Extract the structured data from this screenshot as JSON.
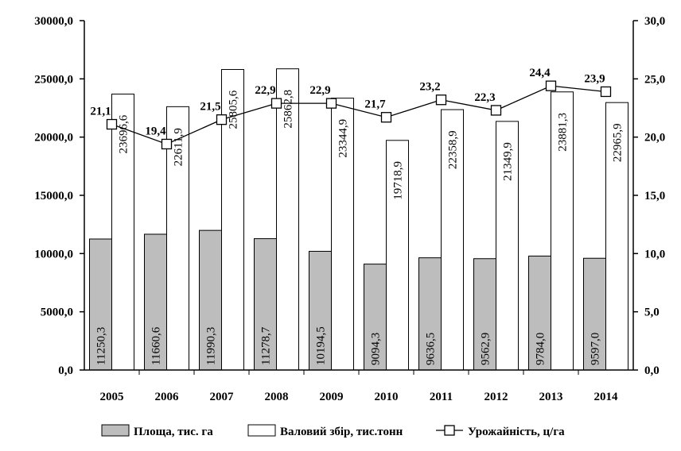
{
  "chart_data": {
    "type": "bar",
    "categories": [
      "2005",
      "2006",
      "2007",
      "2008",
      "2009",
      "2010",
      "2011",
      "2012",
      "2013",
      "2014"
    ],
    "series": [
      {
        "name": "Площа, тис. га",
        "kind": "bar",
        "axis": "left",
        "color": "#bdbdbd",
        "values": [
          11250.3,
          11660.6,
          11990.3,
          11278.7,
          10194.5,
          9094.3,
          9636.5,
          9562.9,
          9784.0,
          9597.0
        ],
        "labels": [
          "11250,3",
          "11660,6",
          "11990,3",
          "11278,7",
          "10194,5",
          "9094,3",
          "9636,5",
          "9562,9",
          "9784,0",
          "9597,0"
        ]
      },
      {
        "name": "Валовий збір, тис.тонн",
        "kind": "bar",
        "axis": "left",
        "color": "#ffffff",
        "values": [
          23696.6,
          22611.9,
          25805.6,
          25862.8,
          23344.9,
          19718.9,
          22358.9,
          21349.9,
          23881.3,
          22965.9
        ],
        "labels": [
          "23696,6",
          "22611,9",
          "25805,6",
          "25862,8",
          "23344,9",
          "19718,9",
          "22358,9",
          "21349,9",
          "23881,3",
          "22965,9"
        ]
      },
      {
        "name": "Урожайність, ц/га",
        "kind": "line",
        "axis": "right",
        "color": "#000000",
        "values": [
          21.1,
          19.4,
          21.5,
          22.9,
          22.9,
          21.7,
          23.2,
          22.3,
          24.4,
          23.9
        ],
        "labels": [
          "21,1",
          "19,4",
          "21,5",
          "22,9",
          "22,9",
          "21,7",
          "23,2",
          "22,3",
          "24,4",
          "23,9"
        ]
      }
    ],
    "y_left": {
      "range": [
        0,
        30000
      ],
      "ticks": [
        0,
        5000,
        10000,
        15000,
        20000,
        25000,
        30000
      ],
      "tick_labels": [
        "0,0",
        "5000,0",
        "10000,0",
        "15000,0",
        "20000,0",
        "25000,0",
        "30000,0"
      ]
    },
    "y_right": {
      "range": [
        0,
        30
      ],
      "ticks": [
        0,
        5,
        10,
        15,
        20,
        25,
        30
      ],
      "tick_labels": [
        "0,0",
        "5,0",
        "10,0",
        "15,0",
        "20,0",
        "25,0",
        "30,0"
      ]
    },
    "grid": false,
    "legend_position": "bottom"
  }
}
